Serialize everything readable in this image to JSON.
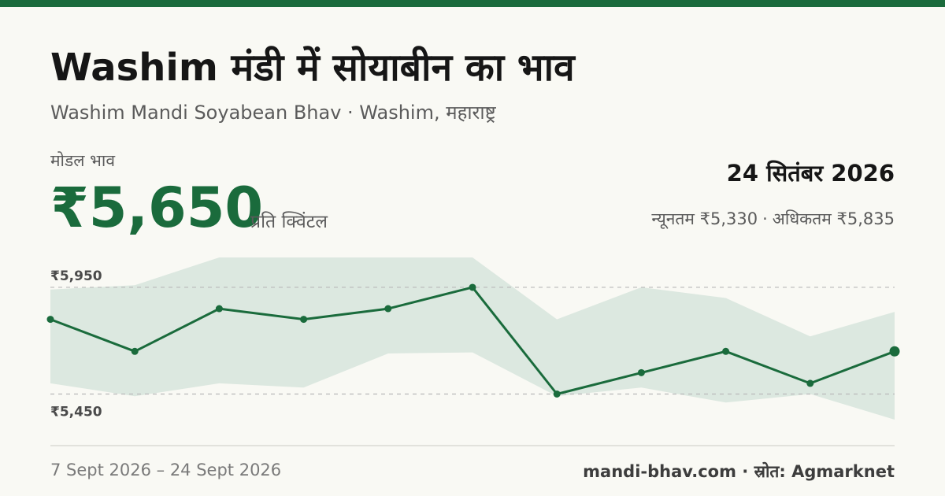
{
  "header": {
    "title": "Washim मंडी में सोयाबीन का भाव",
    "subtitle": "Washim Mandi Soyabean Bhav · Washim, महाराष्ट्र"
  },
  "summary": {
    "model_label": "मोडल भाव",
    "model_price": "₹5,650",
    "unit": "प्रति क्विंटल",
    "date": "24 सितंबर 2026",
    "min_text": "न्यूनतम ₹5,330",
    "max_text": "अधिकतम ₹5,835"
  },
  "footer": {
    "date_range": "7 Sept 2026 – 24 Sept 2026",
    "source": "mandi-bhav.com · स्रोत: Agmarknet"
  },
  "colors": {
    "accent": "#1a6b3c",
    "band": "#dce8e0",
    "gridline": "#b9b9b9"
  },
  "chart_data": {
    "type": "line",
    "grid_ticks": [
      5450,
      5950
    ],
    "tick_labels": [
      "₹5,450",
      "₹5,950"
    ],
    "ylim": [
      5330,
      6090
    ],
    "series": [
      {
        "values": [
          5800,
          5650,
          5850,
          5800,
          5850,
          5950,
          5450,
          5550,
          5650,
          5500,
          5650
        ]
      }
    ],
    "band": {
      "lower": [
        5500,
        5440,
        5500,
        5480,
        5640,
        5645,
        5440,
        5480,
        5410,
        5450,
        5330
      ],
      "upper": [
        5940,
        5960,
        6090,
        6090,
        6090,
        6090,
        5800,
        5950,
        5900,
        5720,
        5835
      ]
    }
  }
}
